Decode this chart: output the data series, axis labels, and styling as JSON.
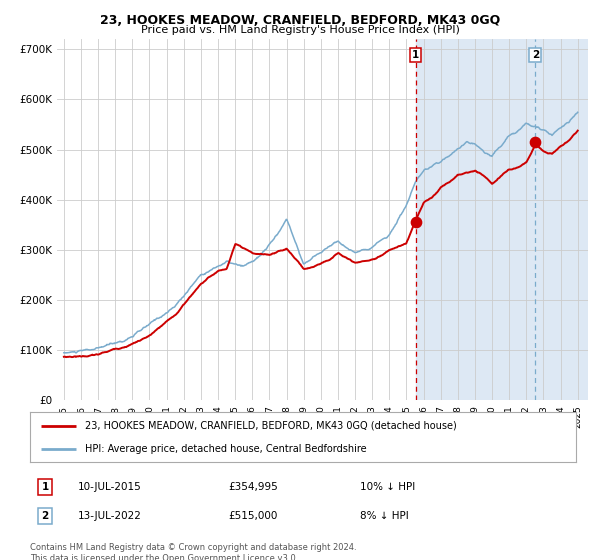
{
  "title": "23, HOOKES MEADOW, CRANFIELD, BEDFORD, MK43 0GQ",
  "subtitle": "Price paid vs. HM Land Registry's House Price Index (HPI)",
  "legend_line1": "23, HOOKES MEADOW, CRANFIELD, BEDFORD, MK43 0GQ (detached house)",
  "legend_line2": "HPI: Average price, detached house, Central Bedfordshire",
  "transaction1_date": "10-JUL-2015",
  "transaction1_price": "£354,995",
  "transaction1_hpi": "10% ↓ HPI",
  "transaction1_year": 2015.53,
  "transaction1_value": 354995,
  "transaction2_date": "13-JUL-2022",
  "transaction2_price": "£515,000",
  "transaction2_hpi": "8% ↓ HPI",
  "transaction2_year": 2022.53,
  "transaction2_value": 515000,
  "ylim_min": 0,
  "ylim_max": 720000,
  "red_line_color": "#cc0000",
  "blue_line_color": "#7aabcc",
  "background_plot": "#dde8f4",
  "grid_color": "#cccccc",
  "footer_text": "Contains HM Land Registry data © Crown copyright and database right 2024.\nThis data is licensed under the Open Government Licence v3.0."
}
